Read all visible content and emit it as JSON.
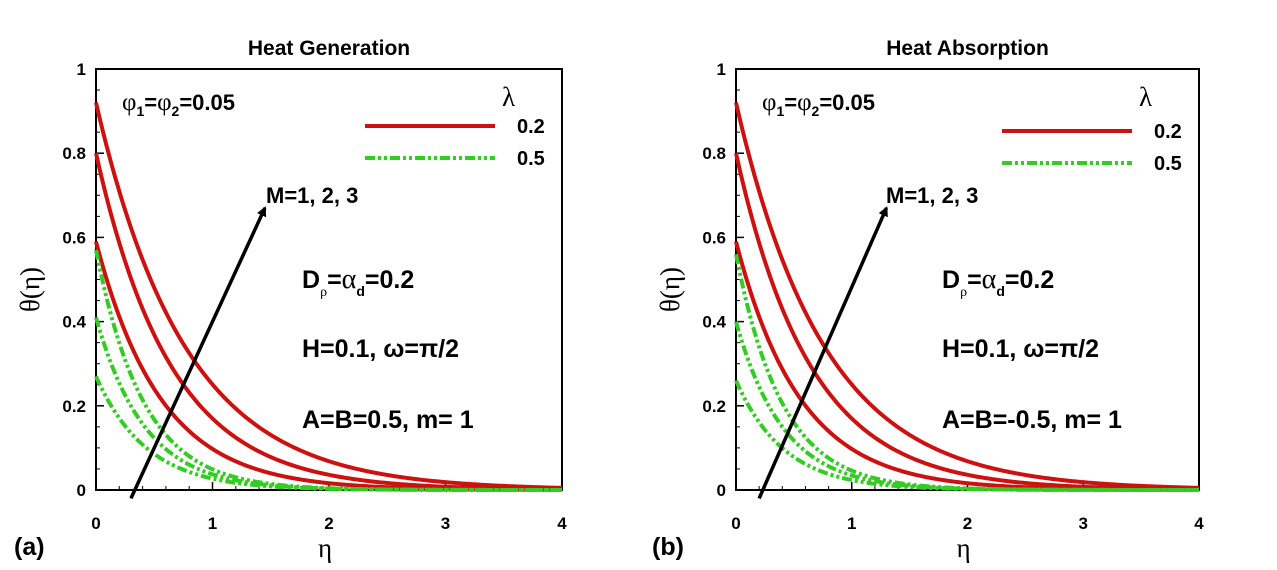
{
  "chart_data": [
    {
      "type": "line",
      "panel_label": "(a)",
      "title": "Heat Generation",
      "xlabel": "η",
      "ylabel": "θ(η)",
      "xlim": [
        0,
        4
      ],
      "ylim": [
        0,
        1
      ],
      "xticks": [
        "0",
        "1",
        "2",
        "3",
        "4"
      ],
      "yticks": [
        "0",
        "0.2",
        "0.4",
        "0.6",
        "0.8",
        "1"
      ],
      "legend": {
        "title": "λ",
        "position": "top-right",
        "entries": [
          {
            "label": "0.2",
            "color": "#cc1111",
            "style": "solid"
          },
          {
            "label": "0.5",
            "color": "#33cc22",
            "style": "dash-dot-dot"
          }
        ]
      },
      "annotations": {
        "phi_lhs1": "φ",
        "phi_sub1": "1",
        "phi_eq1": "=",
        "phi_lhs2": "φ",
        "phi_sub2": "2",
        "phi_rhs": "=0.05",
        "m_label": "M=1, 2, 3",
        "d_rho": "D",
        "d_rho_sub": "ρ",
        "d_eq": "=",
        "d_alpha": "α",
        "d_alpha_sub": "d",
        "d_rhs": "=0.2",
        "h_omega": "H=0.1, ω=π/2",
        "ab_m": "A=B=0.5, m= 1"
      },
      "arrow": {
        "from": [
          0.3,
          -0.02
        ],
        "to": [
          1.45,
          0.67
        ]
      },
      "series": [
        {
          "lambda": "0.2",
          "M": 1,
          "color": "#cc1111",
          "style": "solid",
          "theta0": 0.59,
          "decay": 1.8
        },
        {
          "lambda": "0.2",
          "M": 2,
          "color": "#cc1111",
          "style": "solid",
          "theta0": 0.8,
          "decay": 1.55
        },
        {
          "lambda": "0.2",
          "M": 3,
          "color": "#cc1111",
          "style": "solid",
          "theta0": 0.92,
          "decay": 1.3
        },
        {
          "lambda": "0.5",
          "M": 1,
          "color": "#33cc22",
          "style": "dash-dot-dot",
          "theta0": 0.27,
          "decay": 2.3
        },
        {
          "lambda": "0.5",
          "M": 2,
          "color": "#33cc22",
          "style": "dash-dot-dot",
          "theta0": 0.41,
          "decay": 2.4
        },
        {
          "lambda": "0.5",
          "M": 3,
          "color": "#33cc22",
          "style": "dash-dot-dot",
          "theta0": 0.57,
          "decay": 2.45
        }
      ]
    },
    {
      "type": "line",
      "panel_label": "(b)",
      "title": "Heat Absorption",
      "xlabel": "η",
      "ylabel": "θ(η)",
      "xlim": [
        0,
        4
      ],
      "ylim": [
        0,
        1
      ],
      "xticks": [
        "0",
        "1",
        "2",
        "3",
        "4"
      ],
      "yticks": [
        "0",
        "0.2",
        "0.4",
        "0.6",
        "0.8",
        "1"
      ],
      "legend": {
        "title": "λ",
        "position": "top-right",
        "entries": [
          {
            "label": "0.2",
            "color": "#cc1111",
            "style": "solid"
          },
          {
            "label": "0.5",
            "color": "#33cc22",
            "style": "dash-dot-dot"
          }
        ]
      },
      "annotations": {
        "phi_lhs1": "φ",
        "phi_sub1": "1",
        "phi_eq1": "=",
        "phi_lhs2": "φ",
        "phi_sub2": "2",
        "phi_rhs": "=0.05",
        "m_label": "M=1, 2, 3",
        "d_rho": "D",
        "d_rho_sub": "ρ",
        "d_eq": "=",
        "d_alpha": "α",
        "d_alpha_sub": "d",
        "d_rhs": "=0.2",
        "h_omega": "H=0.1, ω=π/2",
        "ab_m": "A=B=-0.5, m= 1"
      },
      "arrow": {
        "from": [
          0.2,
          -0.02
        ],
        "to": [
          1.3,
          0.67
        ]
      },
      "series": [
        {
          "lambda": "0.2",
          "M": 1,
          "color": "#cc1111",
          "style": "solid",
          "theta0": 0.59,
          "decay": 1.8
        },
        {
          "lambda": "0.2",
          "M": 2,
          "color": "#cc1111",
          "style": "solid",
          "theta0": 0.8,
          "decay": 1.55
        },
        {
          "lambda": "0.2",
          "M": 3,
          "color": "#cc1111",
          "style": "solid",
          "theta0": 0.92,
          "decay": 1.3
        },
        {
          "lambda": "0.5",
          "M": 1,
          "color": "#33cc22",
          "style": "dash-dot-dot",
          "theta0": 0.26,
          "decay": 2.4
        },
        {
          "lambda": "0.5",
          "M": 2,
          "color": "#33cc22",
          "style": "dash-dot-dot",
          "theta0": 0.4,
          "decay": 2.45
        },
        {
          "lambda": "0.5",
          "M": 3,
          "color": "#33cc22",
          "style": "dash-dot-dot",
          "theta0": 0.56,
          "decay": 2.5
        }
      ]
    }
  ]
}
